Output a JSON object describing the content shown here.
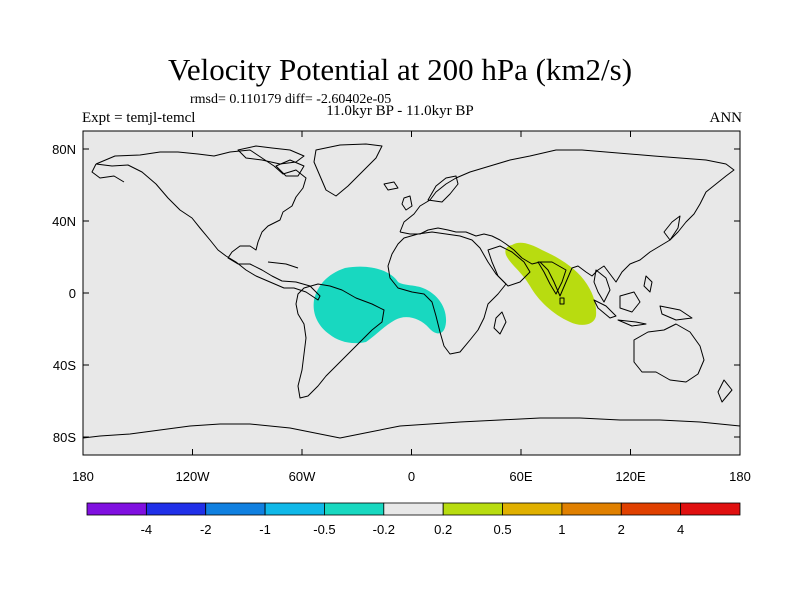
{
  "header": {
    "title": "Velocity Potential at 200 hPa (km2/s)",
    "stats": "rmsd= 0.110179 diff= -2.60402e-05",
    "period": "11.0kyr BP - 11.0kyr BP",
    "experiment": "Expt = temjl-temcl",
    "season": "ANN"
  },
  "map": {
    "background_color": "#e8e8e8",
    "coastline_color": "#000000",
    "lon_ticks": [
      {
        "value": -180,
        "label": "180"
      },
      {
        "value": -120,
        "label": "120W"
      },
      {
        "value": -60,
        "label": "60W"
      },
      {
        "value": 0,
        "label": "0"
      },
      {
        "value": 60,
        "label": "60E"
      },
      {
        "value": 120,
        "label": "120E"
      },
      {
        "value": 180,
        "label": "180"
      }
    ],
    "lat_ticks": [
      {
        "value": 80,
        "label": "80N"
      },
      {
        "value": 40,
        "label": "40N"
      },
      {
        "value": 0,
        "label": "0"
      },
      {
        "value": -40,
        "label": "40S"
      },
      {
        "value": -80,
        "label": "80S"
      }
    ],
    "anomalies": [
      {
        "name": "atlantic-negative",
        "bin": "-0.5 to -0.2",
        "color": "#18d8c0"
      },
      {
        "name": "indian-positive",
        "bin": "0.2 to 0.5",
        "color": "#b8dc10"
      }
    ]
  },
  "colorbar": {
    "colors": [
      "#8010e0",
      "#2030e8",
      "#1080e0",
      "#10b8e8",
      "#18d8c0",
      "#e8e8e8",
      "#b8dc10",
      "#e0b000",
      "#e08000",
      "#e04000",
      "#e01010"
    ],
    "labels": [
      "-4",
      "-2",
      "-1",
      "-0.5",
      "-0.2",
      "0.2",
      "0.5",
      "1",
      "2",
      "4"
    ]
  }
}
